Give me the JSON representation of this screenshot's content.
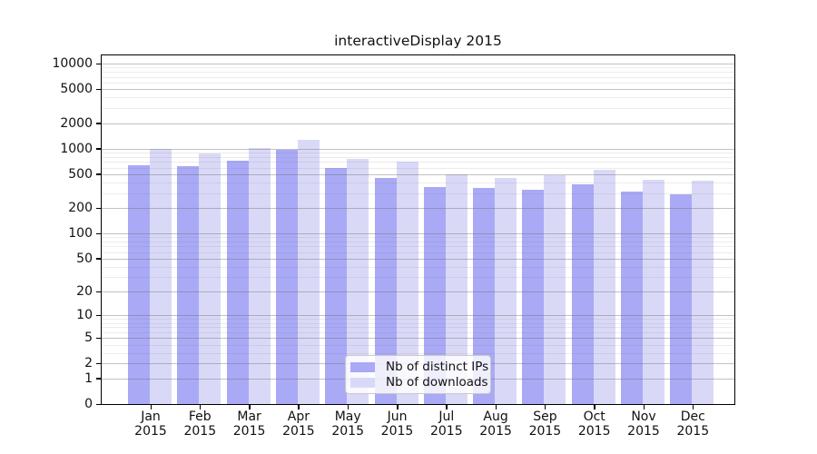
{
  "title": "interactiveDisplay 2015",
  "chart_data": {
    "type": "bar",
    "title": "interactiveDisplay 2015",
    "y_scale": "log10(value+1)",
    "grid": "on",
    "categories": [
      "Jan",
      "Feb",
      "Mar",
      "Apr",
      "May",
      "Jun",
      "Jul",
      "Aug",
      "Sep",
      "Oct",
      "Nov",
      "Dec"
    ],
    "category_year": "2015",
    "series": [
      {
        "name": "Nb of distinct IPs",
        "color": "#a9a9f6",
        "values": [
          640,
          620,
          720,
          970,
          590,
          450,
          355,
          345,
          330,
          385,
          310,
          290
        ]
      },
      {
        "name": "Nb of downloads",
        "color": "#d9d9f7",
        "values": [
          1000,
          870,
          1010,
          1280,
          755,
          700,
          495,
          455,
          485,
          560,
          430,
          425
        ]
      }
    ],
    "y_axis": {
      "major_ticks": [
        0,
        1,
        2,
        5,
        10,
        20,
        50,
        100,
        200,
        500,
        1000,
        2000,
        5000,
        10000
      ],
      "minor_gridlines": [
        3,
        4,
        6,
        7,
        8,
        9,
        30,
        40,
        60,
        70,
        80,
        90,
        300,
        400,
        600,
        700,
        800,
        900,
        3000,
        4000,
        6000,
        7000,
        8000,
        9000
      ],
      "ylim": [
        0,
        12500
      ]
    },
    "legend": {
      "position": "lower center",
      "entries": [
        "Nb of distinct IPs",
        "Nb of downloads"
      ]
    }
  },
  "colors": {
    "ips_bar": "#a9a9f6",
    "downloads_bar": "#d9d9f7",
    "major_grid": "rgba(110,110,110,0.42)",
    "minor_grid": "rgba(110,110,110,0.13)",
    "axis": "#000000",
    "legend_border": "#c9c9c9"
  }
}
